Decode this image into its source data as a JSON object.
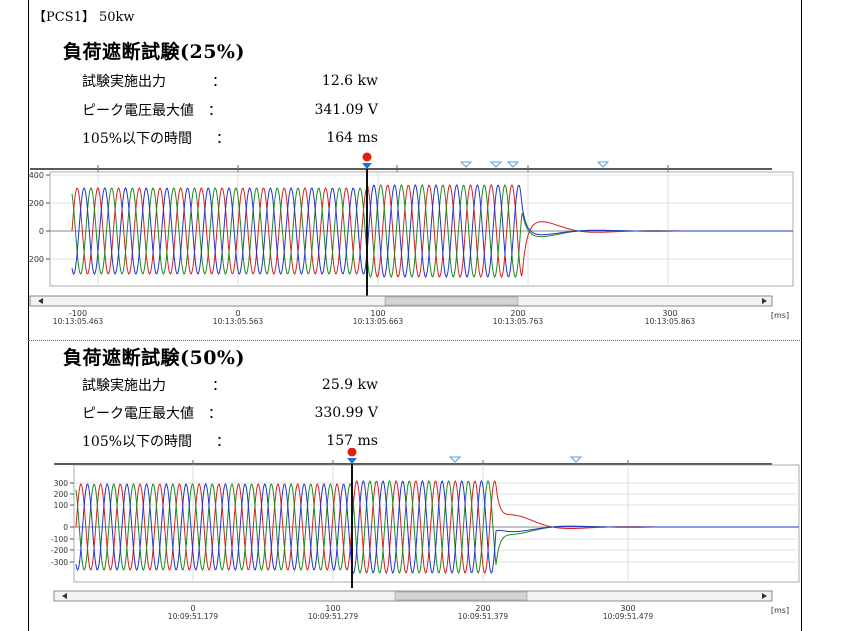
{
  "header": {
    "label": "【PCS1】 50kw"
  },
  "tests": [
    {
      "title": "負荷遮断試験(25%)",
      "rows": [
        {
          "label": "試験実施出力",
          "colon": "：",
          "value": "12.6 kw"
        },
        {
          "label": "ピーク電圧最大値",
          "colon": "：",
          "value": "341.09 V"
        },
        {
          "label": "105%以下の時間",
          "colon": "：",
          "value": "164 ms"
        }
      ],
      "chart": {
        "y_ticks": [
          "400",
          "200",
          "0",
          "-200"
        ],
        "x_ticks": [
          "-100",
          "0",
          "100",
          "200",
          "300"
        ],
        "x_times": [
          "10:13:05.463",
          "10:13:05.563",
          "10:13:05.663",
          "10:13:05.763",
          "10:13:05.863"
        ],
        "unit": "[ms]"
      }
    },
    {
      "title": "負荷遮断試験(50%)",
      "rows": [
        {
          "label": "試験実施出力",
          "colon": "：",
          "value": "25.9 kw"
        },
        {
          "label": "ピーク電圧最大値",
          "colon": "：",
          "value": "330.99 V"
        },
        {
          "label": "105%以下の時間",
          "colon": "：",
          "value": "157 ms"
        }
      ],
      "chart": {
        "y_ticks": [
          "300",
          "200",
          "100",
          "0",
          "-100",
          "-200",
          "-300"
        ],
        "x_ticks": [
          "0",
          "100",
          "200",
          "300"
        ],
        "x_times": [
          "10:09:51.179",
          "10:09:51.279",
          "10:09:51.379",
          "10:09:51.479"
        ],
        "unit": "[ms]"
      }
    }
  ],
  "colors": {
    "phase_a": "#d62020",
    "phase_b": "#1d8a1d",
    "phase_c": "#2233cc",
    "cursor": "#111111",
    "marker_red": "#e02010",
    "marker_blue": "#1a6fd6",
    "marker_outline": "#5aa0e0"
  },
  "icons": {
    "trigger_marker": "trigger-marker-icon",
    "event_marker": "event-marker-icon",
    "scroll_left": "scroll-left-arrow-icon",
    "scroll_right": "scroll-right-arrow-icon"
  }
}
